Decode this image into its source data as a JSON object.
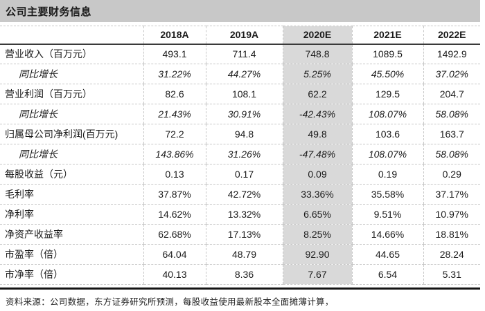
{
  "title": "公司主要财务信息",
  "table": {
    "columns": [
      "",
      "2018A",
      "2019A",
      "2020E",
      "2021E",
      "2022E"
    ],
    "highlight_column": "2020E",
    "rows": [
      {
        "label": "营业收入（百万元）",
        "indent": false,
        "italic": false,
        "values": [
          "493.1",
          "711.4",
          "748.8",
          "1089.5",
          "1492.9"
        ]
      },
      {
        "label": "同比增长",
        "indent": true,
        "italic": true,
        "values": [
          "31.22%",
          "44.27%",
          "5.25%",
          "45.50%",
          "37.02%"
        ]
      },
      {
        "label": "营业利润（百万元）",
        "indent": false,
        "italic": false,
        "values": [
          "82.6",
          "108.1",
          "62.2",
          "129.5",
          "204.7"
        ]
      },
      {
        "label": "同比增长",
        "indent": true,
        "italic": true,
        "values": [
          "21.43%",
          "30.91%",
          "-42.43%",
          "108.07%",
          "58.08%"
        ]
      },
      {
        "label": "归属母公司净利润(百万元)",
        "indent": false,
        "italic": false,
        "values": [
          "72.2",
          "94.8",
          "49.8",
          "103.6",
          "163.7"
        ]
      },
      {
        "label": "同比增长",
        "indent": true,
        "italic": true,
        "values": [
          "143.86%",
          "31.26%",
          "-47.48%",
          "108.07%",
          "58.08%"
        ]
      },
      {
        "label": "每股收益（元）",
        "indent": false,
        "italic": false,
        "values": [
          "0.13",
          "0.17",
          "0.09",
          "0.19",
          "0.29"
        ]
      },
      {
        "label": "毛利率",
        "indent": false,
        "italic": false,
        "values": [
          "37.87%",
          "42.72%",
          "33.36%",
          "35.58%",
          "37.17%"
        ]
      },
      {
        "label": "净利率",
        "indent": false,
        "italic": false,
        "values": [
          "14.62%",
          "13.32%",
          "6.65%",
          "9.51%",
          "10.97%"
        ]
      },
      {
        "label": "净资产收益率",
        "indent": false,
        "italic": false,
        "values": [
          "62.68%",
          "17.13%",
          "8.25%",
          "14.66%",
          "18.81%"
        ]
      },
      {
        "label": "市盈率（倍）",
        "indent": false,
        "italic": false,
        "values": [
          "64.04",
          "48.79",
          "92.90",
          "44.65",
          "28.24"
        ]
      },
      {
        "label": "市净率（倍）",
        "indent": false,
        "italic": false,
        "values": [
          "40.13",
          "8.36",
          "7.67",
          "6.54",
          "5.31"
        ]
      }
    ]
  },
  "footer": "资料来源：公司数据，东方证券研究所预测，每股收益使用最新股本全面摊薄计算，",
  "colors": {
    "title_bar_bg": "#c8c8c8",
    "highlight_col_bg": "#d9d9d9",
    "header_rule": "#3a3a3a",
    "bottom_rule": "#141414",
    "dashed_line": "#c6c6c6",
    "text": "#1a1a1a"
  }
}
